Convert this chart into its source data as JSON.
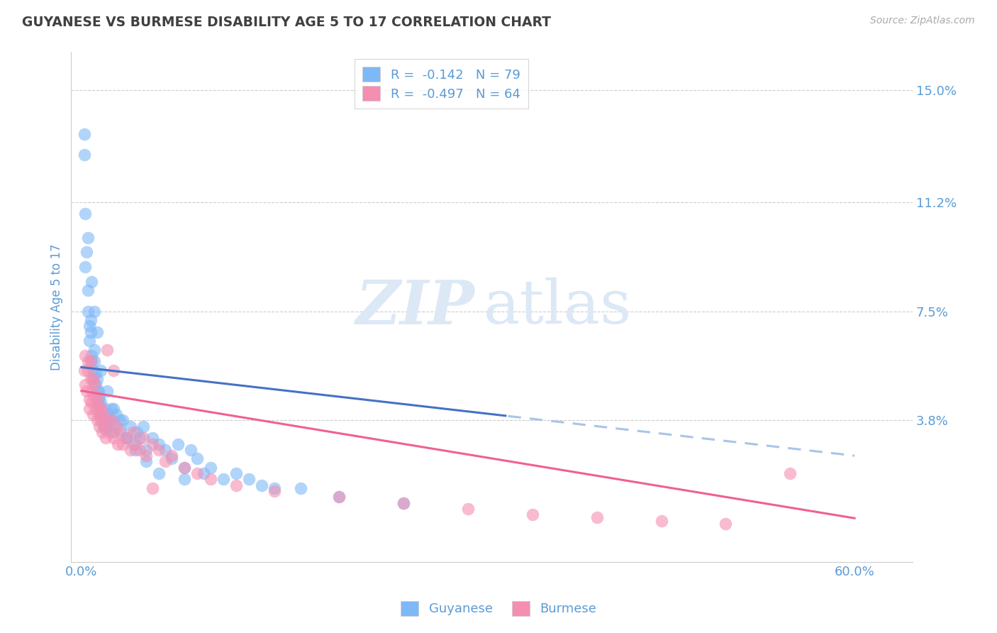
{
  "title": "GUYANESE VS BURMESE DISABILITY AGE 5 TO 17 CORRELATION CHART",
  "source": "Source: ZipAtlas.com",
  "ylabel_label": "Disability Age 5 to 17",
  "ytick_labels": [
    "3.8%",
    "7.5%",
    "11.2%",
    "15.0%"
  ],
  "ytick_values": [
    0.038,
    0.075,
    0.112,
    0.15
  ],
  "xtick_values": [
    0.0,
    0.6
  ],
  "xtick_labels": [
    "0.0%",
    "60.0%"
  ],
  "xmin": -0.008,
  "xmax": 0.645,
  "ymin": -0.01,
  "ymax": 0.163,
  "guyanese_color": "#7eb8f7",
  "burmese_color": "#f48fb1",
  "regression_guyanese_color": "#4472c4",
  "regression_burmese_color": "#f06090",
  "regression_dashed_color": "#aac4e8",
  "grid_color": "#cccccc",
  "title_color": "#404040",
  "axis_label_color": "#5b9bd5",
  "tick_color": "#5b9bd5",
  "watermark_color": "#dce8f5",
  "legend_r1": "R =  -0.142   N = 79",
  "legend_r2": "R =  -0.497   N = 64",
  "guyanese_x": [
    0.002,
    0.002,
    0.003,
    0.004,
    0.005,
    0.005,
    0.006,
    0.006,
    0.007,
    0.007,
    0.008,
    0.008,
    0.009,
    0.009,
    0.01,
    0.01,
    0.011,
    0.011,
    0.012,
    0.012,
    0.013,
    0.013,
    0.014,
    0.014,
    0.015,
    0.015,
    0.016,
    0.017,
    0.018,
    0.018,
    0.019,
    0.02,
    0.021,
    0.022,
    0.023,
    0.024,
    0.025,
    0.027,
    0.03,
    0.032,
    0.035,
    0.038,
    0.04,
    0.043,
    0.045,
    0.048,
    0.05,
    0.055,
    0.06,
    0.065,
    0.07,
    0.075,
    0.08,
    0.085,
    0.09,
    0.095,
    0.1,
    0.11,
    0.12,
    0.13,
    0.14,
    0.15,
    0.17,
    0.2,
    0.25,
    0.003,
    0.005,
    0.008,
    0.01,
    0.012,
    0.015,
    0.02,
    0.025,
    0.03,
    0.035,
    0.042,
    0.05,
    0.06,
    0.08
  ],
  "guyanese_y": [
    0.135,
    0.128,
    0.09,
    0.095,
    0.082,
    0.075,
    0.07,
    0.065,
    0.072,
    0.068,
    0.06,
    0.058,
    0.055,
    0.052,
    0.062,
    0.058,
    0.05,
    0.054,
    0.048,
    0.052,
    0.045,
    0.048,
    0.043,
    0.046,
    0.04,
    0.044,
    0.038,
    0.036,
    0.042,
    0.038,
    0.035,
    0.04,
    0.038,
    0.036,
    0.042,
    0.038,
    0.034,
    0.04,
    0.035,
    0.038,
    0.032,
    0.036,
    0.03,
    0.034,
    0.032,
    0.036,
    0.028,
    0.032,
    0.03,
    0.028,
    0.025,
    0.03,
    0.022,
    0.028,
    0.025,
    0.02,
    0.022,
    0.018,
    0.02,
    0.018,
    0.016,
    0.015,
    0.015,
    0.012,
    0.01,
    0.108,
    0.1,
    0.085,
    0.075,
    0.068,
    0.055,
    0.048,
    0.042,
    0.038,
    0.032,
    0.028,
    0.024,
    0.02,
    0.018
  ],
  "burmese_x": [
    0.002,
    0.003,
    0.004,
    0.005,
    0.006,
    0.006,
    0.007,
    0.008,
    0.008,
    0.009,
    0.01,
    0.01,
    0.011,
    0.012,
    0.012,
    0.013,
    0.014,
    0.015,
    0.015,
    0.016,
    0.017,
    0.018,
    0.019,
    0.02,
    0.022,
    0.024,
    0.025,
    0.027,
    0.028,
    0.03,
    0.032,
    0.035,
    0.038,
    0.04,
    0.042,
    0.045,
    0.048,
    0.05,
    0.055,
    0.06,
    0.065,
    0.07,
    0.08,
    0.09,
    0.1,
    0.12,
    0.15,
    0.2,
    0.25,
    0.3,
    0.35,
    0.4,
    0.45,
    0.5,
    0.55,
    0.003,
    0.005,
    0.007,
    0.009,
    0.012,
    0.015,
    0.02,
    0.025,
    0.055
  ],
  "burmese_y": [
    0.055,
    0.05,
    0.048,
    0.058,
    0.045,
    0.042,
    0.052,
    0.048,
    0.044,
    0.04,
    0.05,
    0.046,
    0.042,
    0.038,
    0.044,
    0.04,
    0.036,
    0.042,
    0.038,
    0.034,
    0.04,
    0.036,
    0.032,
    0.038,
    0.034,
    0.038,
    0.032,
    0.036,
    0.03,
    0.034,
    0.03,
    0.032,
    0.028,
    0.034,
    0.03,
    0.028,
    0.032,
    0.026,
    0.03,
    0.028,
    0.024,
    0.026,
    0.022,
    0.02,
    0.018,
    0.016,
    0.014,
    0.012,
    0.01,
    0.008,
    0.006,
    0.005,
    0.004,
    0.003,
    0.02,
    0.06,
    0.055,
    0.058,
    0.052,
    0.046,
    0.042,
    0.062,
    0.055,
    0.015
  ]
}
